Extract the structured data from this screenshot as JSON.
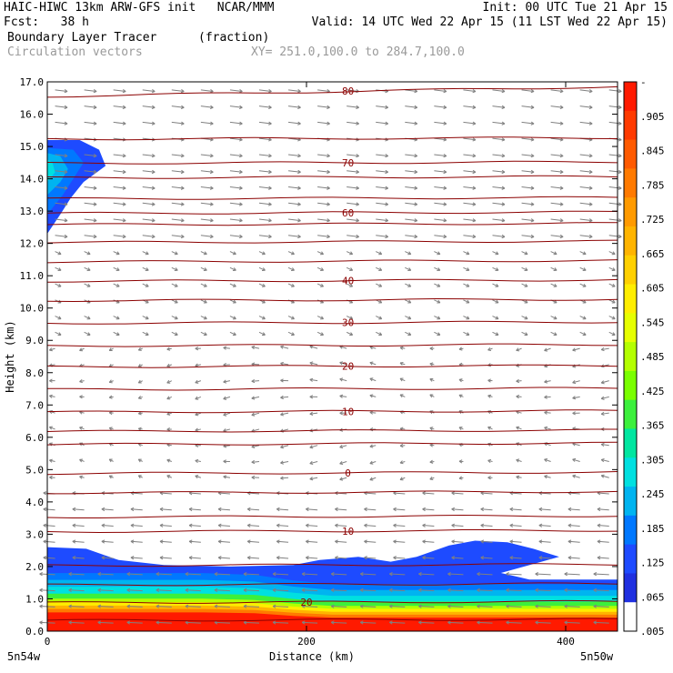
{
  "header": {
    "line1_left": "HAIC-HIWC 13km ARW-GFS init   NCAR/MMM",
    "line1_right": "Init: 00 UTC Tue 21 Apr 15",
    "line2_left": "Fcst:   38 h",
    "line2_right": "Valid: 14 UTC Wed 22 Apr 15 (11 LST Wed 22 Apr 15)",
    "field_name": "Boundary Layer Tracer",
    "field_units": "(fraction)",
    "vector_name": "Circulation vectors",
    "cross_section": "XY= 251.0,100.0 to 284.7,100.0"
  },
  "chart_data": {
    "type": "heatmap",
    "xlabel": "Distance (km)",
    "ylabel": "Height (km)",
    "xlim": [
      0,
      440
    ],
    "ylim": [
      0,
      17
    ],
    "x_ticks": [
      "0",
      "200",
      "400"
    ],
    "y_ticks": [
      "0.0",
      "1.0",
      "2.0",
      "3.0",
      "4.0",
      "5.0",
      "6.0",
      "7.0",
      "8.0",
      "9.0",
      "10.0",
      "11.0",
      "12.0",
      "13.0",
      "14.0",
      "15.0",
      "16.0",
      "17.0"
    ],
    "x_endpoints": [
      "5n54w",
      "5n50w"
    ],
    "colorbar": {
      "labels": [
        "-",
        ".905",
        ".845",
        ".785",
        ".725",
        ".665",
        ".605",
        ".545",
        ".485",
        ".425",
        ".365",
        ".305",
        ".245",
        ".185",
        ".125",
        ".065",
        ".005"
      ],
      "colors": [
        "#ff1a00",
        "#ff3a00",
        "#ff5a00",
        "#ff7a00",
        "#ff9a00",
        "#ffb400",
        "#ffd000",
        "#ffee00",
        "#e6ff00",
        "#b4ff00",
        "#7aff00",
        "#3cf03c",
        "#00e6a0",
        "#00e0e0",
        "#00b4f0",
        "#0078ff",
        "#1e4bff",
        "#2030e0",
        "#ffffff"
      ]
    },
    "temperature_contours": [
      {
        "label": "80",
        "height_km": 16.7
      },
      {
        "label": "70",
        "height_km": 14.5
      },
      {
        "label": "60",
        "height_km": 12.95
      },
      {
        "label": "40",
        "height_km": 10.85
      },
      {
        "label": "30",
        "height_km": 9.55
      },
      {
        "label": "20",
        "height_km": 8.2
      },
      {
        "label": "10",
        "height_km": 6.8
      },
      {
        "label": "0",
        "height_km": 4.9
      },
      {
        "label": "10",
        "height_km": 3.1
      },
      {
        "label": "20",
        "height_km": 0.9
      }
    ],
    "unlabeled_contour_heights_km": [
      15.25,
      14.05,
      13.4,
      12.6,
      12.05,
      11.45,
      10.25,
      8.85,
      7.5,
      6.2,
      5.8,
      4.3,
      3.55,
      2.05,
      1.45,
      0.35
    ],
    "tracer_layer_top_km": [
      [
        0,
        2.6
      ],
      [
        30,
        2.55
      ],
      [
        55,
        2.2
      ],
      [
        90,
        2.05
      ],
      [
        140,
        2.0
      ],
      [
        190,
        2.05
      ],
      [
        210,
        2.2
      ],
      [
        240,
        2.3
      ],
      [
        265,
        2.15
      ],
      [
        285,
        2.3
      ],
      [
        310,
        2.65
      ],
      [
        330,
        2.8
      ],
      [
        355,
        2.75
      ],
      [
        375,
        2.55
      ],
      [
        395,
        2.3
      ],
      [
        350,
        1.8
      ],
      [
        372,
        1.6
      ],
      [
        440,
        1.6
      ]
    ],
    "upper_tracer_plume": {
      "x_km": [
        0,
        45
      ],
      "z_km": [
        12.3,
        15.2
      ],
      "max_value": 0.185
    }
  }
}
